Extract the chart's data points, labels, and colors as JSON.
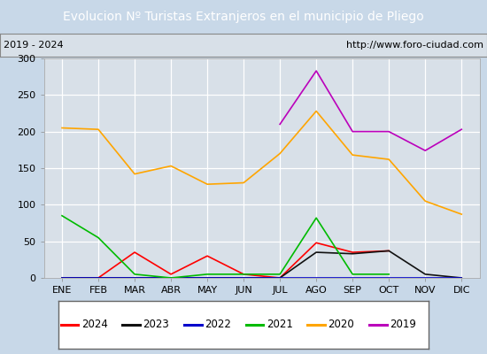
{
  "title": "Evolucion Nº Turistas Extranjeros en el municipio de Pliego",
  "subtitle_left": "2019 - 2024",
  "subtitle_right": "http://www.foro-ciudad.com",
  "months": [
    "ENE",
    "FEB",
    "MAR",
    "ABR",
    "MAY",
    "JUN",
    "JUL",
    "AGO",
    "SEP",
    "OCT",
    "NOV",
    "DIC"
  ],
  "ylim": [
    0,
    300
  ],
  "yticks": [
    0,
    50,
    100,
    150,
    200,
    250,
    300
  ],
  "series": {
    "2024": {
      "color": "#ff0000",
      "data": [
        0,
        0,
        35,
        5,
        30,
        5,
        0,
        48,
        35,
        37,
        null,
        null
      ]
    },
    "2023": {
      "color": "#111111",
      "data": [
        0,
        0,
        0,
        0,
        0,
        0,
        0,
        35,
        33,
        37,
        5,
        0
      ]
    },
    "2022": {
      "color": "#0000cc",
      "data": [
        0,
        0,
        0,
        0,
        0,
        0,
        0,
        0,
        0,
        0,
        0,
        0
      ]
    },
    "2021": {
      "color": "#00bb00",
      "data": [
        85,
        55,
        5,
        0,
        5,
        5,
        5,
        82,
        5,
        5,
        null,
        null
      ]
    },
    "2020": {
      "color": "#ffa500",
      "data": [
        205,
        203,
        142,
        153,
        128,
        130,
        170,
        228,
        168,
        162,
        105,
        87
      ]
    },
    "2019": {
      "color": "#bb00bb",
      "data": [
        null,
        null,
        null,
        null,
        null,
        null,
        210,
        283,
        200,
        200,
        174,
        203
      ]
    }
  },
  "outer_bg": "#c8d8e8",
  "plot_bg": "#d8e0e8",
  "title_bg": "#4488cc",
  "title_color": "#ffffff",
  "header_bg": "#d8e0e8",
  "header_border": "#888888",
  "grid_color": "#ffffff",
  "legend_bg": "#ffffff",
  "legend_border": "#666666",
  "legend_order": [
    "2024",
    "2023",
    "2022",
    "2021",
    "2020",
    "2019"
  ],
  "title_fontsize": 10,
  "tick_fontsize": 8,
  "legend_fontsize": 8.5
}
